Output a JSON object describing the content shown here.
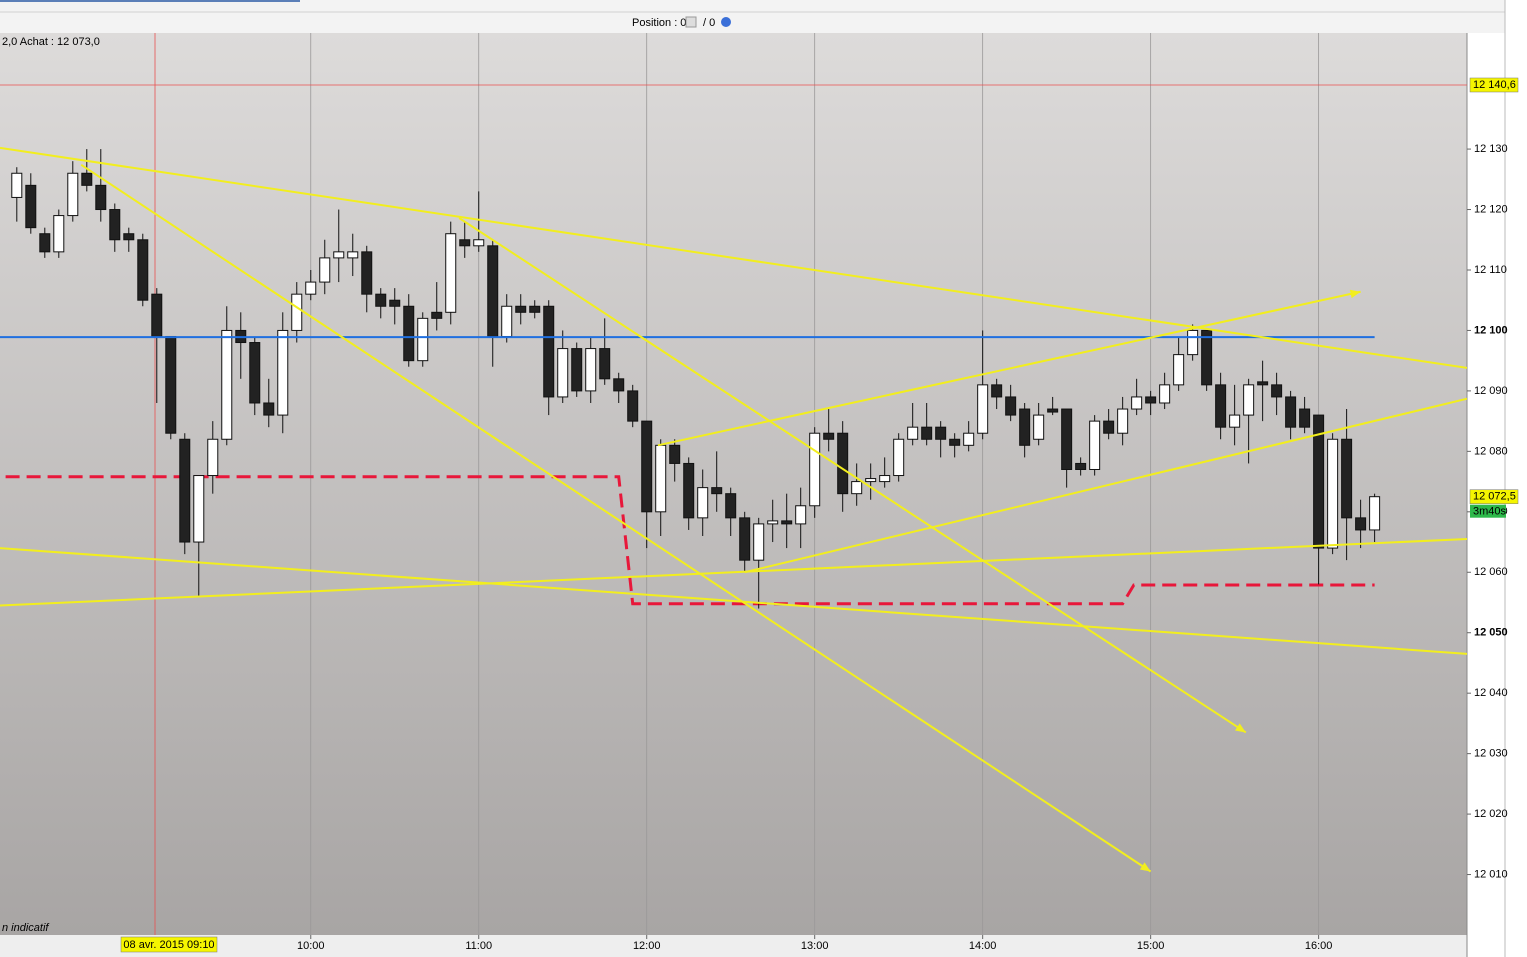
{
  "chart_data": {
    "type": "candlestick",
    "header": {
      "position_label": "Position : 0",
      "position_sep": "/ 0"
    },
    "info": "2,0 Achat : 12 073,0",
    "footnote": "n indicatif",
    "xlim": [
      "08:09",
      "16:53"
    ],
    "ylim": [
      12000,
      12149.2
    ],
    "grid": "x",
    "xticks": [
      "10:00",
      "11:00",
      "12:00",
      "13:00",
      "14:00",
      "15:00",
      "16:00"
    ],
    "yticks": [
      {
        "value": 12010,
        "label": "12 010"
      },
      {
        "value": 12020,
        "label": "12 020"
      },
      {
        "value": 12030,
        "label": "12 030"
      },
      {
        "value": 12040,
        "label": "12 040"
      },
      {
        "value": 12050,
        "label": "12 050"
      },
      {
        "value": 12060,
        "label": "12 060"
      },
      {
        "value": 12070,
        "label": "12 070"
      },
      {
        "value": 12080,
        "label": "12 080"
      },
      {
        "value": 12090,
        "label": "12 090"
      },
      {
        "value": 12100,
        "label": "12 100"
      },
      {
        "value": 12110,
        "label": "12 110"
      },
      {
        "value": 12120,
        "label": "12 120"
      },
      {
        "value": 12130,
        "label": "12 130"
      }
    ],
    "up_color": "#ffffff",
    "down_color": "#222222",
    "x": [
      "08:15",
      "08:20",
      "08:25",
      "08:30",
      "08:35",
      "08:40",
      "08:45",
      "08:50",
      "08:55",
      "09:00",
      "09:05",
      "09:10",
      "09:15",
      "09:20",
      "09:25",
      "09:30",
      "09:35",
      "09:40",
      "09:45",
      "09:50",
      "09:55",
      "10:00",
      "10:05",
      "10:10",
      "10:15",
      "10:20",
      "10:25",
      "10:30",
      "10:35",
      "10:40",
      "10:45",
      "10:50",
      "10:55",
      "11:00",
      "11:05",
      "11:10",
      "11:15",
      "11:20",
      "11:25",
      "11:30",
      "11:35",
      "11:40",
      "11:45",
      "11:50",
      "11:55",
      "12:00",
      "12:05",
      "12:10",
      "12:15",
      "12:20",
      "12:25",
      "12:30",
      "12:35",
      "12:40",
      "12:45",
      "12:50",
      "12:55",
      "13:00",
      "13:05",
      "13:10",
      "13:15",
      "13:20",
      "13:25",
      "13:30",
      "13:35",
      "13:40",
      "13:45",
      "13:50",
      "13:55",
      "14:00",
      "14:05",
      "14:10",
      "14:15",
      "14:20",
      "14:25",
      "14:30",
      "14:35",
      "14:40",
      "14:45",
      "14:50",
      "14:55",
      "15:00",
      "15:05",
      "15:10",
      "15:15",
      "15:20",
      "15:25",
      "15:30",
      "15:35",
      "15:40",
      "15:45",
      "15:50",
      "15:55",
      "16:00",
      "16:05",
      "16:10",
      "16:15",
      "16:20"
    ],
    "open": [
      12122,
      12124,
      12116,
      12113,
      12119,
      12126,
      12124,
      12120,
      12116,
      12115,
      12106,
      12099,
      12082,
      12065,
      12076,
      12082,
      12100,
      12098,
      12088,
      12086,
      12100,
      12106,
      12108,
      12112,
      12112,
      12113,
      12106,
      12105,
      12104,
      12095,
      12103,
      12103,
      12115,
      12114,
      12114,
      12099,
      12104,
      12104,
      12104,
      12089,
      12097,
      12090,
      12097,
      12092,
      12090,
      12085,
      12070,
      12081,
      12078,
      12069,
      12074,
      12073,
      12069,
      12062,
      12068,
      12068.5,
      12068,
      12071,
      12083,
      12083,
      12073,
      12075,
      12075,
      12076,
      12082,
      12084,
      12084,
      12082,
      12081,
      12083,
      12091,
      12089,
      12087,
      12082,
      12087,
      12087,
      12078,
      12077,
      12085,
      12083,
      12087,
      12089,
      12088,
      12091,
      12096,
      12100,
      12091,
      12084,
      12086,
      12091.5,
      12091,
      12089,
      12087,
      12086,
      12064,
      12082,
      12069,
      12067
    ],
    "high": [
      12127,
      12126,
      12117,
      12120,
      12128,
      12130,
      12130,
      12121,
      12117,
      12116,
      12107,
      12099,
      12083,
      12076,
      12085,
      12104,
      12103,
      12099,
      12092,
      12103,
      12108,
      12110,
      12115,
      12120,
      12116,
      12114,
      12107,
      12107,
      12106,
      12103,
      12108,
      12118,
      12118,
      12123,
      12115,
      12106,
      12106,
      12105,
      12105,
      12100,
      12098,
      12099,
      12102,
      12093,
      12091,
      12085,
      12082,
      12082,
      12079,
      12077,
      12080,
      12074,
      12070,
      12069,
      12072,
      12073,
      12074,
      12084,
      12087,
      12085,
      12078,
      12078,
      12079,
      12083,
      12088,
      12088,
      12085,
      12083,
      12085,
      12100,
      12092,
      12091,
      12088,
      12088,
      12089,
      12087,
      12079,
      12086,
      12087,
      12089,
      12092,
      12090,
      12093,
      12099,
      12101,
      12100,
      12093,
      12091,
      12092,
      12095,
      12093,
      12090,
      12089,
      12086,
      12083,
      12087,
      12072,
      12073
    ],
    "low": [
      12118,
      12116,
      12112,
      12112,
      12118,
      12123,
      12118,
      12113,
      12113,
      12104,
      12088,
      12082,
      12063,
      12056,
      12073,
      12081,
      12092,
      12086,
      12084,
      12083,
      12098,
      12105,
      12106,
      12108,
      12109,
      12103,
      12102,
      12101,
      12094,
      12094,
      12100,
      12101,
      12112,
      12113,
      12094,
      12098,
      12101,
      12102,
      12086,
      12088,
      12089,
      12088,
      12091,
      12088,
      12084,
      12064,
      12066,
      12075,
      12067,
      12066,
      12070,
      12066,
      12060,
      12054,
      12065,
      12064,
      12064,
      12069,
      12080,
      12070,
      12071,
      12072,
      12074,
      12075,
      12081,
      12081,
      12079,
      12079,
      12080,
      12082,
      12087,
      12085,
      12079,
      12081,
      12086,
      12074,
      12076,
      12076,
      12082,
      12081,
      12086,
      12086,
      12087,
      12090,
      12095,
      12090,
      12082,
      12081,
      12078,
      12085,
      12086,
      12082,
      12083,
      12058,
      12063,
      12062,
      12064,
      12065
    ],
    "close": [
      12126,
      12117,
      12113,
      12119,
      12126,
      12124,
      12120,
      12115,
      12115,
      12105,
      12099,
      12083,
      12065,
      12076,
      12082,
      12100,
      12098,
      12088,
      12086,
      12100,
      12106,
      12108,
      12112,
      12113,
      12113,
      12106,
      12104,
      12104,
      12095,
      12102,
      12102,
      12116,
      12114,
      12115,
      12099,
      12104,
      12103,
      12103,
      12089,
      12097,
      12090,
      12097,
      12092,
      12090,
      12085,
      12070,
      12081,
      12078,
      12069,
      12074,
      12073,
      12069,
      12062,
      12068,
      12068.5,
      12068,
      12071,
      12083,
      12082,
      12073,
      12075,
      12075.5,
      12076,
      12082,
      12084,
      12082,
      12082,
      12081,
      12083,
      12091,
      12089,
      12086,
      12081,
      12086,
      12086.5,
      12077,
      12077,
      12085,
      12083,
      12087,
      12089,
      12088,
      12091,
      12096,
      12100,
      12091,
      12084,
      12086,
      12091,
      12091,
      12089,
      12084,
      12084,
      12064,
      12082,
      12069,
      12067,
      12072.5
    ],
    "hline": {
      "price": 12098.9,
      "from": "08:09",
      "to": "16:20",
      "color": "#1f6fe0"
    },
    "support": {
      "color": "#e8173a",
      "points": [
        [
          "08:11",
          12075.8
        ],
        [
          "11:50",
          12075.8
        ],
        [
          "11:55",
          12054.8
        ],
        [
          "14:50",
          12054.8
        ],
        [
          "14:54",
          12057.9
        ],
        [
          "16:20",
          12057.9
        ]
      ]
    },
    "trendlines": {
      "color": "#f2ee1e",
      "lines": [
        {
          "points": [
            [
              "08:09",
              12130.2
            ],
            [
              "16:53",
              12093.8
            ]
          ],
          "arrow": false
        },
        {
          "points": [
            [
              "08:09",
              12064
            ],
            [
              "16:53",
              12046.5
            ]
          ],
          "arrow": false
        },
        {
          "points": [
            [
              "08:09",
              12054.5
            ],
            [
              "16:53",
              12065.5
            ]
          ],
          "arrow": false
        },
        {
          "points": [
            [
              "08:38",
              12127.4
            ],
            [
              "15:00",
              12010.5
            ]
          ],
          "arrow": true
        },
        {
          "points": [
            [
              "10:53",
              12118.6
            ],
            [
              "15:34",
              12033.5
            ]
          ],
          "arrow": true
        },
        {
          "points": [
            [
              "12:04",
              12081
            ],
            [
              "16:15",
              12106.4
            ]
          ],
          "arrow": true
        },
        {
          "points": [
            [
              "12:35",
              12060
            ],
            [
              "16:53",
              12088.7
            ]
          ],
          "arrow": false
        }
      ]
    },
    "crosshair": {
      "price": 12140.6,
      "price_label": "12 140,6",
      "time_label": "08 avr. 2015 09:10"
    },
    "last_price": {
      "value": 12072.5,
      "label": "12 072,5",
      "timer": "3m40s"
    }
  }
}
